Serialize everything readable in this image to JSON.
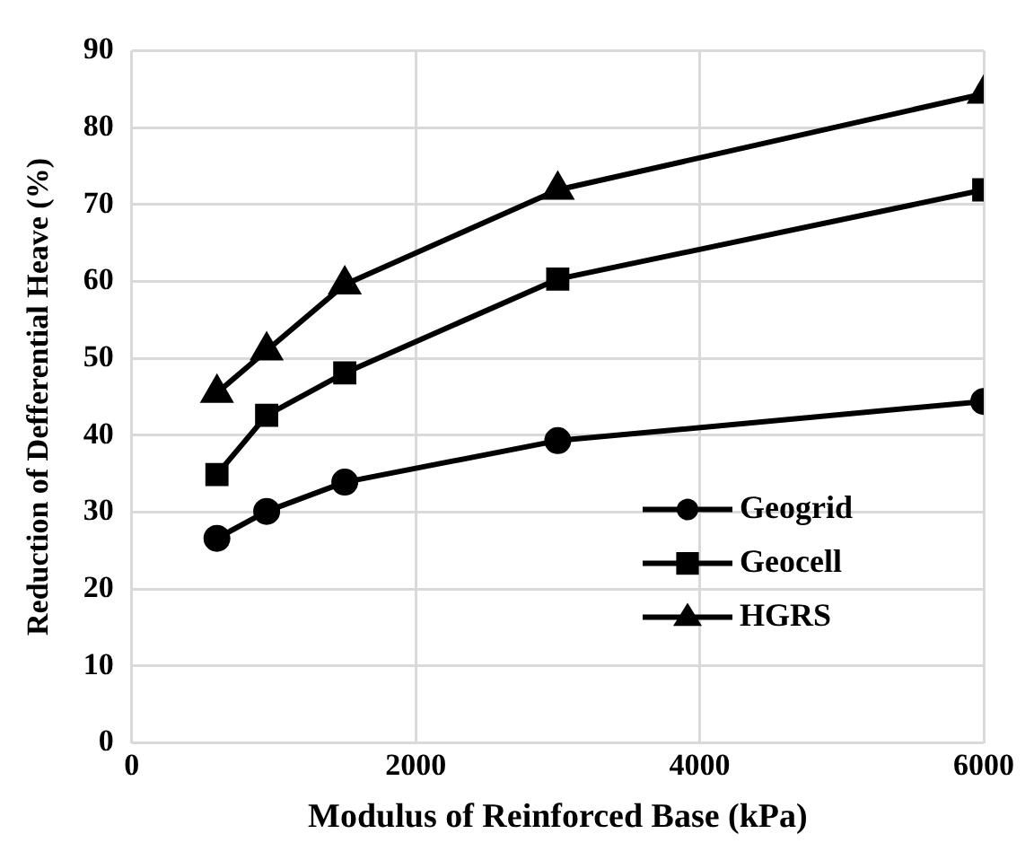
{
  "chart_data": {
    "type": "line",
    "xlabel": "Modulus of Reinforced Base (kPa)",
    "ylabel": "Reduction of Defferential Heave (%)",
    "x": [
      600,
      950,
      1500,
      3000,
      6000
    ],
    "xlim": [
      0,
      6000
    ],
    "xticks": [
      0,
      2000,
      4000,
      6000
    ],
    "ylim": [
      0,
      90
    ],
    "yticks": [
      0,
      10,
      20,
      30,
      40,
      50,
      60,
      70,
      80,
      90
    ],
    "grid": true,
    "legend": "bottom right",
    "line_style": "solid",
    "series": [
      {
        "name": "Geogrid",
        "color": "#000000",
        "marker": "circle",
        "values": [
          26.6,
          30.1,
          33.9,
          39.3,
          44.4
        ]
      },
      {
        "name": "Geocell",
        "color": "#000000",
        "marker": "square",
        "values": [
          34.9,
          42.6,
          48.1,
          60.3,
          71.9
        ]
      },
      {
        "name": "HGRS",
        "color": "#000000",
        "marker": "triangle",
        "values": [
          45.5,
          51.0,
          59.6,
          71.9,
          84.4
        ]
      }
    ]
  }
}
